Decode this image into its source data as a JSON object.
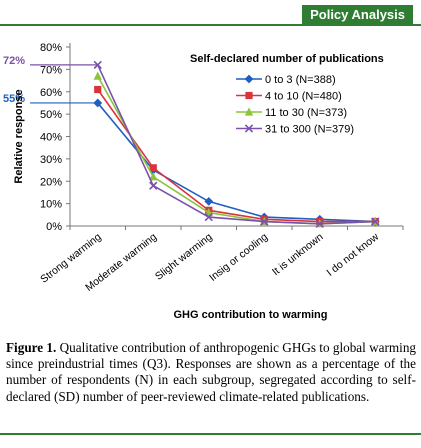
{
  "header": {
    "section_tag": "Policy Analysis"
  },
  "caption": {
    "label": "Figure 1.",
    "text": "Qualitative contribution of anthropogenic GHGs to global warming since preindustrial times (Q3). Responses are shown as a percentage of the number of respondents (N) in each subgroup, segregated according to self-declared (SD) number of peer-reviewed climate-related publications."
  },
  "chart_data": {
    "type": "line",
    "categories": [
      "Strong warming",
      "Moderate warming",
      "Slight warming",
      "Insig or cooling",
      "It is unknown",
      "I do not know"
    ],
    "series": [
      {
        "name": "0 to 3 (N=388)",
        "color": "#1f5fbf",
        "marker": "diamond",
        "values": [
          55,
          25,
          11,
          4,
          3,
          2
        ]
      },
      {
        "name": "4 to 10 (N=480)",
        "color": "#d9343b",
        "marker": "square",
        "values": [
          61,
          26,
          7,
          3,
          2,
          2
        ]
      },
      {
        "name": "11 to 30 (N=373)",
        "color": "#8cc43b",
        "marker": "triangle",
        "values": [
          67,
          22,
          6,
          2,
          1,
          2
        ]
      },
      {
        "name": "31 to 300 (N=379)",
        "color": "#7b52ab",
        "marker": "x",
        "values": [
          72,
          18,
          4,
          2,
          1,
          2
        ]
      }
    ],
    "ylim": [
      0,
      80
    ],
    "yticks": [
      "0%",
      "10%",
      "20%",
      "30%",
      "40%",
      "50%",
      "60%",
      "70%",
      "80%"
    ],
    "ylabel": "Relative response",
    "xlabel": "GHG contribution to warming",
    "legend_title": "Self-declared number of publications",
    "legend_position": "right",
    "grid": false,
    "annotations": [
      {
        "text": "72%",
        "series": 3,
        "category": 0,
        "color": "#7b52ab"
      },
      {
        "text": "55%",
        "series": 0,
        "category": 0,
        "color": "#1f5fbf"
      }
    ]
  }
}
